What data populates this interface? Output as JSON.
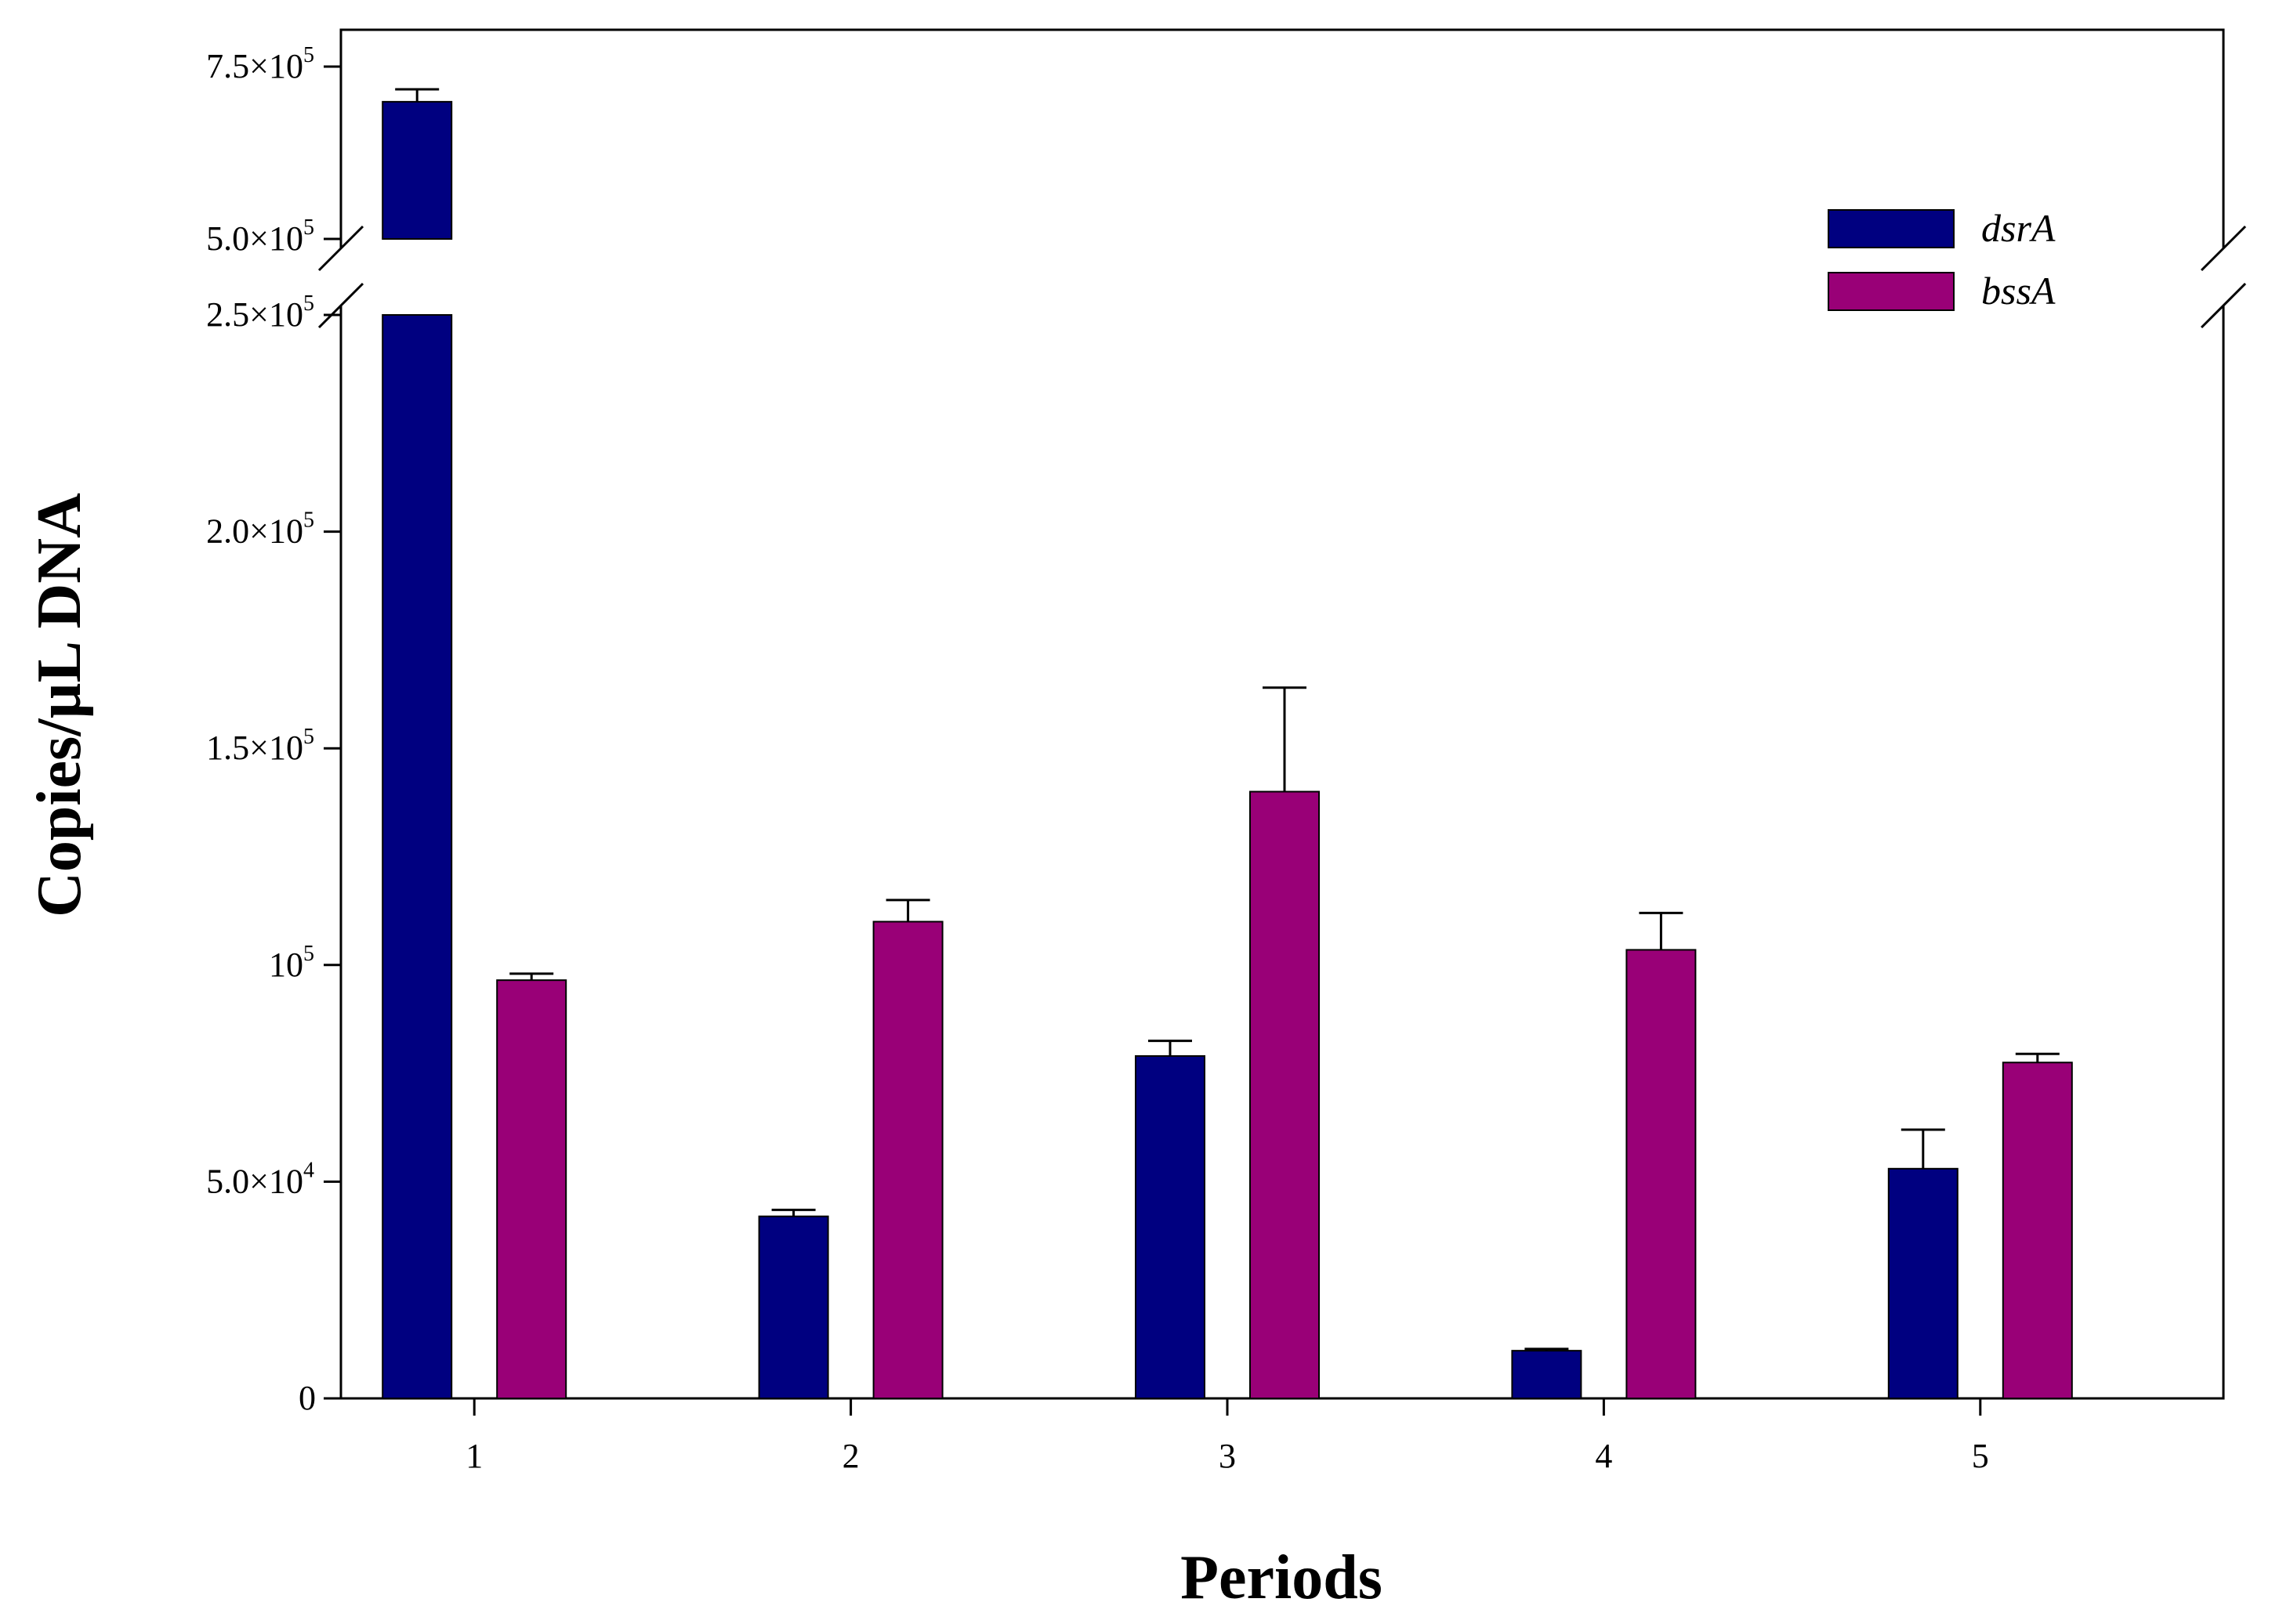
{
  "chart_data": {
    "type": "bar",
    "xlabel": "Periods",
    "ylabel": "Copies/µL DNA",
    "categories": [
      "1",
      "2",
      "3",
      "4",
      "5"
    ],
    "series": [
      {
        "name": "dsrA",
        "color": "#000080",
        "values": [
          699000,
          42000,
          79000,
          11000,
          53000
        ],
        "errors": [
          18000,
          1500,
          3500,
          400,
          9000
        ]
      },
      {
        "name": "bssA",
        "color": "#990077",
        "values": [
          96500,
          110000,
          140000,
          103500,
          77500
        ],
        "errors": [
          1500,
          5000,
          24000,
          8500,
          2000
        ]
      }
    ],
    "axis_break": {
      "lower_max": 250000,
      "upper_min": 500000,
      "upper_max": 750000
    },
    "ylim": [
      0,
      750000
    ],
    "yticks": [
      {
        "value": 0,
        "mantissa": "0",
        "exp": ""
      },
      {
        "value": 50000,
        "mantissa": "5.0×10",
        "exp": "4"
      },
      {
        "value": 100000,
        "mantissa": "10",
        "exp": "5"
      },
      {
        "value": 150000,
        "mantissa": "1.5×10",
        "exp": "5"
      },
      {
        "value": 200000,
        "mantissa": "2.0×10",
        "exp": "5"
      },
      {
        "value": 250000,
        "mantissa": "2.5×10",
        "exp": "5"
      },
      {
        "value": 500000,
        "mantissa": "5.0×10",
        "exp": "5"
      },
      {
        "value": 750000,
        "mantissa": "7.5×10",
        "exp": "5"
      }
    ],
    "legend_position": "top-right",
    "grid": false
  }
}
